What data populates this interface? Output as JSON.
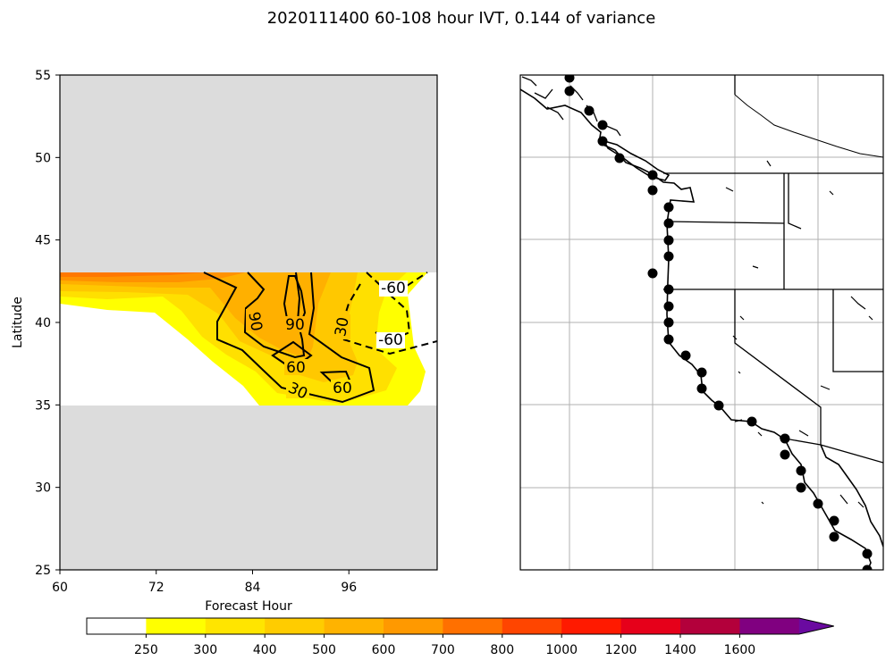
{
  "figure": {
    "title": "2020111400 60-108 hour IVT, 0.144 of variance"
  },
  "colors": {
    "missing": "#dcdcdc",
    "contour": "#000000",
    "station": "#000000",
    "grid": "#b0b0b0"
  },
  "chart_data": [
    {
      "type": "contour",
      "xlabel": "Forecast Hour",
      "ylabel": "Latitude",
      "xlim": [
        60,
        107
      ],
      "ylim": [
        25,
        55
      ],
      "xticks": [
        60,
        72,
        84,
        96
      ],
      "yticks": [
        25,
        30,
        35,
        40,
        45,
        50,
        55
      ],
      "data_band_lat": [
        35,
        43
      ],
      "filled_levels": [
        250,
        300,
        400,
        500,
        600,
        700
      ],
      "contour_levels": [
        -60,
        30,
        60,
        90
      ],
      "negative_contours_dashed": true,
      "contour_labels": [
        "90",
        "90",
        "30",
        "60",
        "30",
        "60",
        "-60",
        "-60"
      ]
    },
    {
      "type": "map",
      "region": "US West Coast and Baja California",
      "grid": true,
      "station_markers": 31
    },
    {
      "type": "colorbar",
      "levels": [
        250,
        300,
        400,
        500,
        600,
        700,
        800,
        1000,
        1200,
        1400,
        1600
      ],
      "tick_labels": [
        "250",
        "300",
        "400",
        "500",
        "600",
        "700",
        "800",
        "1000",
        "1200",
        "1400",
        "1600"
      ],
      "colors": [
        "#ffffff",
        "#ffff00",
        "#ffe500",
        "#ffcc00",
        "#ffb300",
        "#ff9900",
        "#ff7000",
        "#ff4500",
        "#ff1a00",
        "#e6001a",
        "#b3003b",
        "#800080",
        "#6a0aa0"
      ],
      "extend": "max"
    }
  ]
}
